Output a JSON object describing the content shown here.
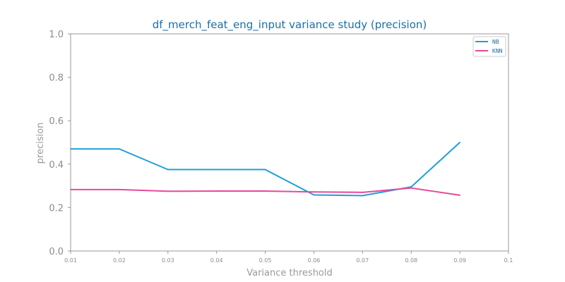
{
  "chart_data": {
    "type": "line",
    "title": "df_merch_feat_eng_input variance study (precision)",
    "xlabel": "Variance threshold",
    "ylabel": "precision",
    "xlim": [
      0.01,
      0.1
    ],
    "ylim": [
      0.0,
      1.0
    ],
    "x_ticks": [
      "0.01",
      "0.02",
      "0.03",
      "0.04",
      "0.05",
      "0.06",
      "0.07",
      "0.08",
      "0.09",
      "0.1"
    ],
    "y_ticks": [
      "0.0",
      "0.2",
      "0.4",
      "0.6",
      "0.8",
      "1.0"
    ],
    "x": [
      0.01,
      0.02,
      0.03,
      0.04,
      0.05,
      0.06,
      0.07,
      0.08,
      0.09
    ],
    "series": [
      {
        "name": "NB",
        "color": "#1f9fd8",
        "values": [
          0.47,
          0.47,
          0.375,
          0.375,
          0.375,
          0.258,
          0.255,
          0.295,
          0.5
        ]
      },
      {
        "name": "KNN",
        "color": "#e8489a",
        "values": [
          0.283,
          0.283,
          0.275,
          0.276,
          0.276,
          0.272,
          0.27,
          0.29,
          0.257
        ]
      }
    ],
    "grid": false,
    "legend_position": "top-right"
  }
}
